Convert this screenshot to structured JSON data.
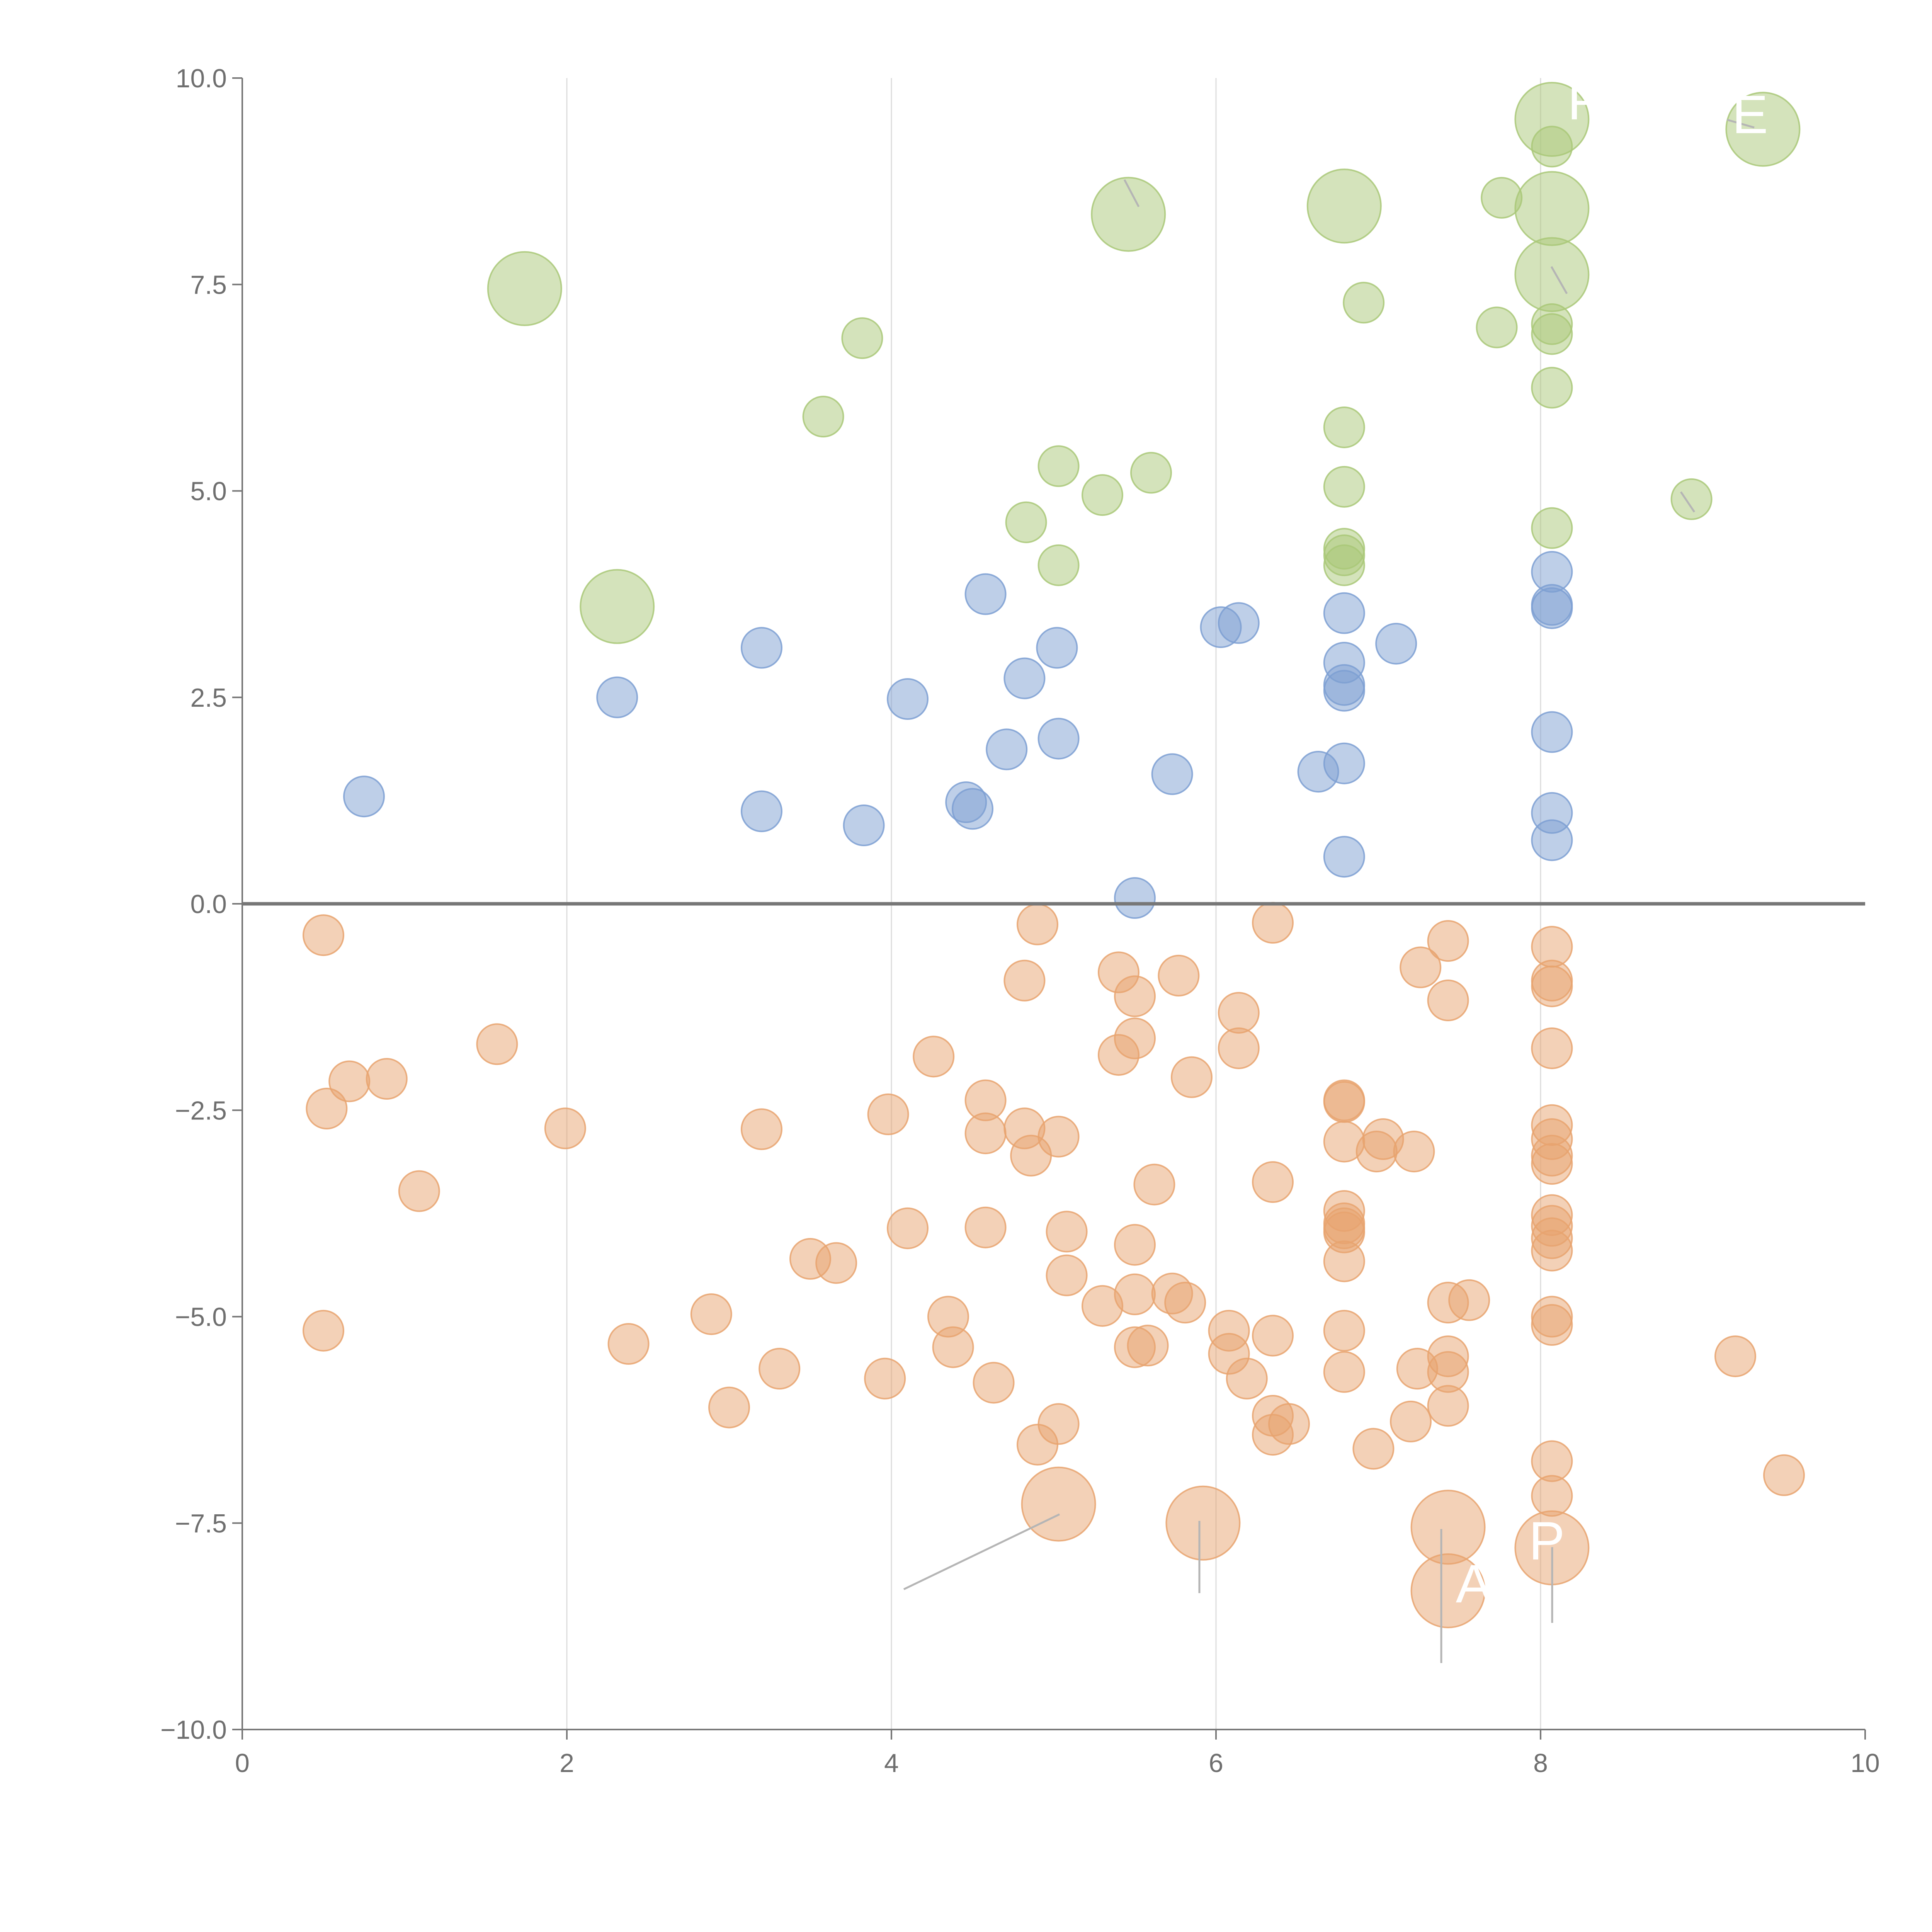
{
  "chart_data": {
    "type": "scatter",
    "title": "",
    "xlabel": "",
    "ylabel": "",
    "xlim": [
      0,
      10
    ],
    "ylim": [
      -10,
      10
    ],
    "x_ticks": [
      0,
      2,
      4,
      6,
      8,
      10
    ],
    "x_tick_labels": [
      "0",
      "2",
      "4",
      "6",
      "8",
      "10"
    ],
    "y_ticks": [
      -10,
      -7.5,
      -5,
      -2.5,
      0,
      2.5,
      5,
      7.5,
      10
    ],
    "y_tick_labels": [
      "−10.0",
      "−7.5",
      "−5.0",
      "−2.5",
      "0.0",
      "2.5",
      "5.0",
      "7.5",
      "10.0"
    ],
    "grid": "vertical",
    "zero_line": true,
    "colors": {
      "green": "#a9c878",
      "blue": "#7d9fd2",
      "orange": "#e8a36f",
      "axis": "#777777",
      "grid": "#dcdcdc"
    },
    "series": [
      {
        "name": "green",
        "color": "#a9c878",
        "points": [
          {
            "x": 1.74,
            "y": 7.45,
            "size": "large"
          },
          {
            "x": 2.31,
            "y": 3.6,
            "size": "large"
          },
          {
            "x": 3.58,
            "y": 5.9,
            "size": "small"
          },
          {
            "x": 3.82,
            "y": 6.85,
            "size": "small"
          },
          {
            "x": 4.83,
            "y": 4.62,
            "size": "small"
          },
          {
            "x": 5.03,
            "y": 5.3,
            "size": "small"
          },
          {
            "x": 5.03,
            "y": 4.1,
            "size": "small"
          },
          {
            "x": 5.3,
            "y": 4.95,
            "size": "small"
          },
          {
            "x": 5.46,
            "y": 8.35,
            "size": "large"
          },
          {
            "x": 5.6,
            "y": 5.22,
            "size": "small"
          },
          {
            "x": 6.79,
            "y": 8.45,
            "size": "large"
          },
          {
            "x": 6.79,
            "y": 5.77,
            "size": "small"
          },
          {
            "x": 6.79,
            "y": 5.05,
            "size": "small"
          },
          {
            "x": 6.79,
            "y": 4.3,
            "size": "small"
          },
          {
            "x": 6.79,
            "y": 4.22,
            "size": "small"
          },
          {
            "x": 6.79,
            "y": 4.1,
            "size": "small"
          },
          {
            "x": 6.91,
            "y": 7.28,
            "size": "small"
          },
          {
            "x": 7.73,
            "y": 6.98,
            "size": "small"
          },
          {
            "x": 7.76,
            "y": 8.55,
            "size": "small"
          },
          {
            "x": 8.07,
            "y": 9.5,
            "size": "large"
          },
          {
            "x": 8.07,
            "y": 9.17,
            "size": "small"
          },
          {
            "x": 8.07,
            "y": 8.42,
            "size": "large"
          },
          {
            "x": 8.07,
            "y": 7.62,
            "size": "large"
          },
          {
            "x": 8.07,
            "y": 7.02,
            "size": "small"
          },
          {
            "x": 8.07,
            "y": 6.9,
            "size": "small"
          },
          {
            "x": 8.07,
            "y": 6.25,
            "size": "small"
          },
          {
            "x": 8.07,
            "y": 4.55,
            "size": "small"
          },
          {
            "x": 8.93,
            "y": 4.9,
            "size": "small"
          },
          {
            "x": 9.37,
            "y": 9.38,
            "size": "large"
          }
        ]
      },
      {
        "name": "blue",
        "color": "#7d9fd2",
        "points": [
          {
            "x": 0.75,
            "y": 1.3
          },
          {
            "x": 2.31,
            "y": 2.5
          },
          {
            "x": 3.2,
            "y": 3.1
          },
          {
            "x": 3.2,
            "y": 1.12
          },
          {
            "x": 3.83,
            "y": 0.95
          },
          {
            "x": 4.1,
            "y": 2.48
          },
          {
            "x": 4.46,
            "y": 1.23
          },
          {
            "x": 4.5,
            "y": 1.15
          },
          {
            "x": 4.58,
            "y": 3.75
          },
          {
            "x": 4.71,
            "y": 1.87
          },
          {
            "x": 4.82,
            "y": 2.73
          },
          {
            "x": 5.02,
            "y": 3.1
          },
          {
            "x": 5.03,
            "y": 2.0
          },
          {
            "x": 5.5,
            "y": 0.07
          },
          {
            "x": 5.73,
            "y": 1.57
          },
          {
            "x": 6.03,
            "y": 3.35
          },
          {
            "x": 6.14,
            "y": 3.4
          },
          {
            "x": 6.63,
            "y": 1.6
          },
          {
            "x": 6.79,
            "y": 3.52
          },
          {
            "x": 6.79,
            "y": 2.92
          },
          {
            "x": 6.79,
            "y": 2.65
          },
          {
            "x": 6.79,
            "y": 2.58
          },
          {
            "x": 6.79,
            "y": 1.7
          },
          {
            "x": 6.79,
            "y": 0.57
          },
          {
            "x": 7.11,
            "y": 3.15
          },
          {
            "x": 8.07,
            "y": 4.02
          },
          {
            "x": 8.07,
            "y": 3.62
          },
          {
            "x": 8.07,
            "y": 3.58
          },
          {
            "x": 8.07,
            "y": 2.08
          },
          {
            "x": 8.07,
            "y": 1.1
          },
          {
            "x": 8.07,
            "y": 0.77
          }
        ]
      },
      {
        "name": "orange",
        "color": "#e8a36f",
        "points": [
          {
            "x": 0.5,
            "y": -0.38
          },
          {
            "x": 0.52,
            "y": -2.48
          },
          {
            "x": 0.66,
            "y": -2.15
          },
          {
            "x": 0.89,
            "y": -2.12
          },
          {
            "x": 1.09,
            "y": -3.48
          },
          {
            "x": 0.5,
            "y": -5.17
          },
          {
            "x": 1.57,
            "y": -1.7
          },
          {
            "x": 1.99,
            "y": -2.72
          },
          {
            "x": 2.38,
            "y": -5.33
          },
          {
            "x": 2.89,
            "y": -4.97
          },
          {
            "x": 3.0,
            "y": -6.1
          },
          {
            "x": 3.2,
            "y": -2.73
          },
          {
            "x": 3.31,
            "y": -5.63
          },
          {
            "x": 3.5,
            "y": -4.3
          },
          {
            "x": 3.66,
            "y": -4.35
          },
          {
            "x": 3.96,
            "y": -5.75
          },
          {
            "x": 3.98,
            "y": -2.55
          },
          {
            "x": 4.1,
            "y": -3.93
          },
          {
            "x": 4.26,
            "y": -1.85
          },
          {
            "x": 4.35,
            "y": -5.0
          },
          {
            "x": 4.38,
            "y": -5.37
          },
          {
            "x": 4.58,
            "y": -2.38
          },
          {
            "x": 4.58,
            "y": -2.78
          },
          {
            "x": 4.58,
            "y": -3.92
          },
          {
            "x": 4.63,
            "y": -5.8
          },
          {
            "x": 4.82,
            "y": -0.93
          },
          {
            "x": 4.82,
            "y": -2.72
          },
          {
            "x": 4.86,
            "y": -3.05
          },
          {
            "x": 4.9,
            "y": -0.25
          },
          {
            "x": 4.9,
            "y": -6.55
          },
          {
            "x": 5.03,
            "y": -2.82
          },
          {
            "x": 5.03,
            "y": -6.3
          },
          {
            "x": 5.03,
            "y": -7.27,
            "size": "large"
          },
          {
            "x": 5.08,
            "y": -3.97
          },
          {
            "x": 5.08,
            "y": -4.5
          },
          {
            "x": 5.3,
            "y": -4.87
          },
          {
            "x": 5.4,
            "y": -0.83
          },
          {
            "x": 5.4,
            "y": -1.83
          },
          {
            "x": 5.5,
            "y": -1.12
          },
          {
            "x": 5.5,
            "y": -1.63
          },
          {
            "x": 5.5,
            "y": -4.13
          },
          {
            "x": 5.5,
            "y": -4.73
          },
          {
            "x": 5.5,
            "y": -5.37
          },
          {
            "x": 5.58,
            "y": -5.35
          },
          {
            "x": 5.62,
            "y": -3.4
          },
          {
            "x": 5.73,
            "y": -4.72
          },
          {
            "x": 5.77,
            "y": -0.87
          },
          {
            "x": 5.81,
            "y": -4.83
          },
          {
            "x": 5.85,
            "y": -2.1
          },
          {
            "x": 5.92,
            "y": -7.5,
            "size": "large"
          },
          {
            "x": 6.08,
            "y": -5.17
          },
          {
            "x": 6.08,
            "y": -5.45
          },
          {
            "x": 6.14,
            "y": -1.32
          },
          {
            "x": 6.14,
            "y": -1.75
          },
          {
            "x": 6.19,
            "y": -5.75
          },
          {
            "x": 6.35,
            "y": -0.23
          },
          {
            "x": 6.35,
            "y": -3.37
          },
          {
            "x": 6.35,
            "y": -5.23
          },
          {
            "x": 6.35,
            "y": -6.2
          },
          {
            "x": 6.35,
            "y": -6.43
          },
          {
            "x": 6.45,
            "y": -6.3
          },
          {
            "x": 6.79,
            "y": -2.38
          },
          {
            "x": 6.79,
            "y": -2.4
          },
          {
            "x": 6.79,
            "y": -2.88
          },
          {
            "x": 6.79,
            "y": -3.72
          },
          {
            "x": 6.79,
            "y": -3.87
          },
          {
            "x": 6.79,
            "y": -3.93
          },
          {
            "x": 6.79,
            "y": -3.98
          },
          {
            "x": 6.79,
            "y": -4.33
          },
          {
            "x": 6.79,
            "y": -5.17
          },
          {
            "x": 6.79,
            "y": -5.67
          },
          {
            "x": 6.97,
            "y": -6.6
          },
          {
            "x": 6.99,
            "y": -3.0
          },
          {
            "x": 7.03,
            "y": -2.85
          },
          {
            "x": 7.2,
            "y": -6.27
          },
          {
            "x": 7.22,
            "y": -3.0
          },
          {
            "x": 7.24,
            "y": -5.63
          },
          {
            "x": 7.26,
            "y": -0.77
          },
          {
            "x": 7.43,
            "y": -0.45
          },
          {
            "x": 7.43,
            "y": -1.17
          },
          {
            "x": 7.43,
            "y": -4.83
          },
          {
            "x": 7.43,
            "y": -5.48
          },
          {
            "x": 7.43,
            "y": -5.67
          },
          {
            "x": 7.43,
            "y": -6.08
          },
          {
            "x": 7.43,
            "y": -7.55,
            "size": "large"
          },
          {
            "x": 7.43,
            "y": -8.32,
            "size": "large"
          },
          {
            "x": 7.56,
            "y": -4.8
          },
          {
            "x": 8.07,
            "y": -0.52
          },
          {
            "x": 8.07,
            "y": -0.93
          },
          {
            "x": 8.07,
            "y": -1.0
          },
          {
            "x": 8.07,
            "y": -1.75
          },
          {
            "x": 8.07,
            "y": -2.68
          },
          {
            "x": 8.07,
            "y": -2.85
          },
          {
            "x": 8.07,
            "y": -3.05
          },
          {
            "x": 8.07,
            "y": -3.15
          },
          {
            "x": 8.07,
            "y": -3.77
          },
          {
            "x": 8.07,
            "y": -3.9
          },
          {
            "x": 8.07,
            "y": -4.05
          },
          {
            "x": 8.07,
            "y": -4.2
          },
          {
            "x": 8.07,
            "y": -5.0
          },
          {
            "x": 8.07,
            "y": -5.1
          },
          {
            "x": 8.07,
            "y": -6.75
          },
          {
            "x": 8.07,
            "y": -7.17
          },
          {
            "x": 8.07,
            "y": -7.8,
            "size": "large"
          },
          {
            "x": 9.2,
            "y": -5.48
          },
          {
            "x": 9.5,
            "y": -6.92
          }
        ]
      }
    ],
    "annotations": [
      {
        "text": "P",
        "x": 8.07,
        "y": 9.5
      },
      {
        "text": "E",
        "x": 9.37,
        "y": 9.38
      },
      {
        "text": "A",
        "x": 7.43,
        "y": -8.32
      },
      {
        "text": "P",
        "x": 8.07,
        "y": -7.8
      }
    ]
  }
}
